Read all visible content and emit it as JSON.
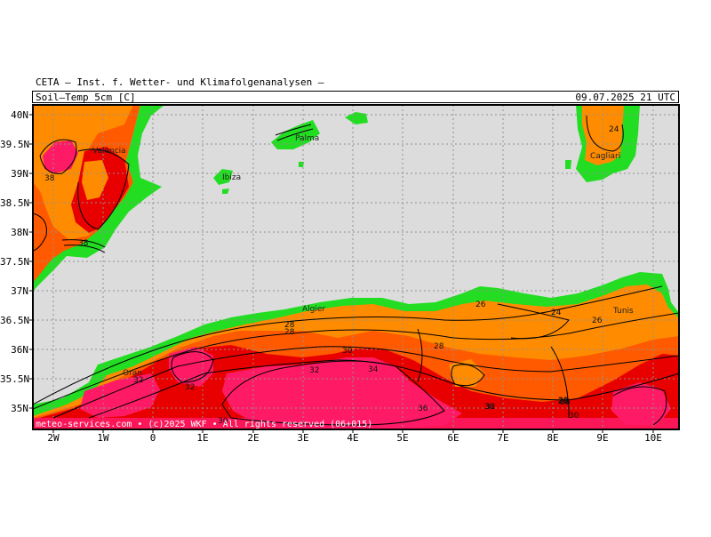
{
  "header": {
    "source": "CETA — Inst. f. Wetter- und Klimafolgenanalysen —",
    "parameter": "Soil—Temp 5cm [C]",
    "datetime": "09.07.2025 21 UTC"
  },
  "footer": "meteo-services.com • (c)2025 WKF • All rights reserved (06+015)",
  "axes": {
    "lat_labels": [
      "40N",
      "39.5N",
      "39N",
      "38.5N",
      "38N",
      "37.5N",
      "37N",
      "36.5N",
      "36N",
      "35.5N",
      "35N"
    ],
    "lon_labels": [
      "2W",
      "1W",
      "0",
      "1E",
      "2E",
      "3E",
      "4E",
      "5E",
      "6E",
      "7E",
      "8E",
      "9E",
      "10E"
    ]
  },
  "places": [
    "Valencia",
    "Ibiza",
    "Palma",
    "Algier",
    "Oran",
    "Tunis",
    "Cagliari"
  ],
  "contour_labels": [
    "38",
    "38",
    "24",
    "26",
    "24",
    "26",
    "28",
    "28",
    "28",
    "30",
    "32",
    "32",
    "32",
    "34",
    "36",
    "36",
    "36",
    "30",
    "28",
    "30",
    "32",
    "28"
  ],
  "colors": {
    "sea": "#dcdcdc",
    "t24": "#ff8c00",
    "t28": "#ff5a00",
    "t32": "#e80000",
    "t36": "#ff1a66",
    "coast_green": "#22dd22"
  }
}
